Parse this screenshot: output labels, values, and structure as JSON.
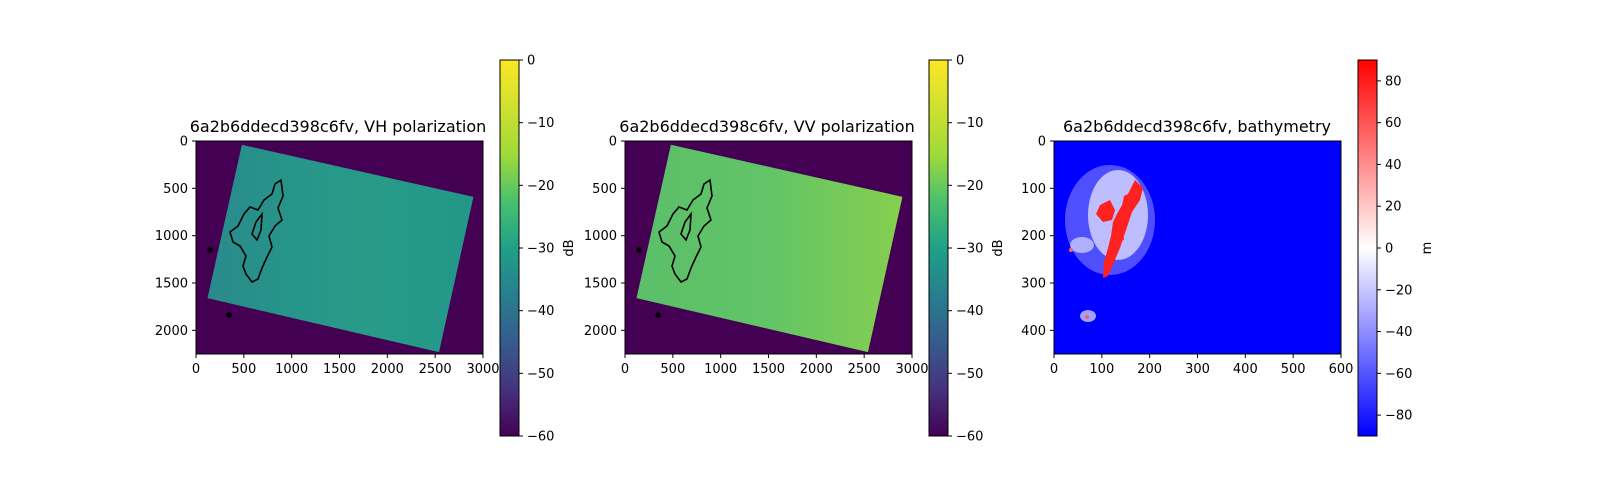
{
  "chart_data": [
    {
      "type": "heatmap",
      "title": "6a2b6ddecd398c6fv, VH polarization",
      "xlim": [
        0,
        3000
      ],
      "ylim": [
        2250,
        0
      ],
      "xticks": [
        0,
        500,
        1000,
        1500,
        2000,
        2500,
        3000
      ],
      "yticks": [
        0,
        500,
        1000,
        1500,
        2000
      ],
      "footprint": [
        [
          480,
          40
        ],
        [
          2900,
          590
        ],
        [
          2540,
          2230
        ],
        [
          120,
          1660
        ]
      ],
      "background_value": -60,
      "swath_value_range": [
        -30,
        -25
      ],
      "colorbar": {
        "label": "dB",
        "colormap": "viridis",
        "range": [
          -60,
          0
        ],
        "ticks": [
          0,
          -10,
          -20,
          -30,
          -40,
          -50,
          -60
        ]
      }
    },
    {
      "type": "heatmap",
      "title": "6a2b6ddecd398c6fv, VV polarization",
      "xlim": [
        0,
        3000
      ],
      "ylim": [
        2250,
        0
      ],
      "xticks": [
        0,
        500,
        1000,
        1500,
        2000,
        2500,
        3000
      ],
      "yticks": [
        0,
        500,
        1000,
        1500,
        2000
      ],
      "footprint": [
        [
          480,
          40
        ],
        [
          2900,
          590
        ],
        [
          2540,
          2230
        ],
        [
          120,
          1660
        ]
      ],
      "background_value": -60,
      "swath_value_range": [
        -17,
        -12
      ],
      "colorbar": {
        "label": "dB",
        "colormap": "viridis",
        "range": [
          -60,
          0
        ],
        "ticks": [
          0,
          -10,
          -20,
          -30,
          -40,
          -50,
          -60
        ]
      }
    },
    {
      "type": "heatmap",
      "title": "6a2b6ddecd398c6fv, bathymetry",
      "xlim": [
        0,
        600
      ],
      "ylim": [
        450,
        0
      ],
      "xticks": [
        0,
        100,
        200,
        300,
        400,
        500,
        600
      ],
      "yticks": [
        0,
        100,
        200,
        300,
        400
      ],
      "background_value": -90,
      "colorbar": {
        "label": "m",
        "colormap": "bwr",
        "range": [
          -90,
          90
        ],
        "ticks": [
          80,
          60,
          40,
          20,
          0,
          -20,
          -40,
          -60,
          -80
        ]
      }
    }
  ]
}
